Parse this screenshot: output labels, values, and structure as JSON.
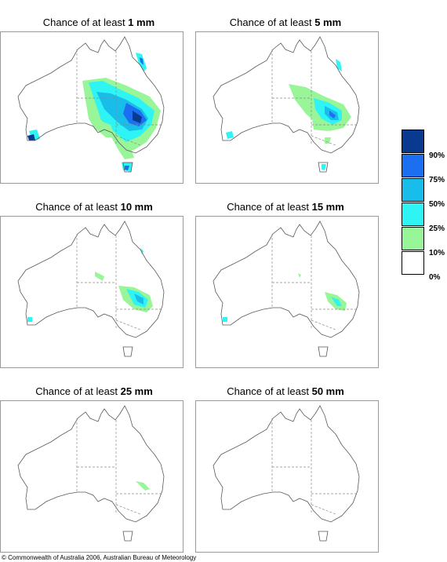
{
  "panels": [
    {
      "title_prefix": "Chance of at least",
      "amount": "1 mm"
    },
    {
      "title_prefix": "Chance of at least",
      "amount": "5 mm"
    },
    {
      "title_prefix": "Chance of at least",
      "amount": "10 mm"
    },
    {
      "title_prefix": "Chance of at least",
      "amount": "15 mm"
    },
    {
      "title_prefix": "Chance of at least",
      "amount": "25 mm"
    },
    {
      "title_prefix": "Chance of at least",
      "amount": "50 mm"
    }
  ],
  "legend": {
    "labels": [
      "90%",
      "75%",
      "50%",
      "25%",
      "10%",
      "0%"
    ],
    "colors": [
      "#0a3a8f",
      "#1c6ff0",
      "#18bde9",
      "#2ef4f4",
      "#98f598",
      "#ffffff"
    ]
  },
  "copyright": "© Commonwealth of Australia 2006, Australian Bureau of Meteorology"
}
